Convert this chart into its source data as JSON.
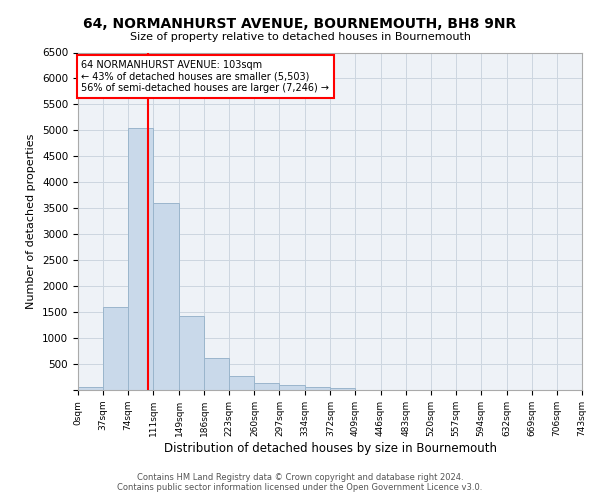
{
  "title": "64, NORMANHURST AVENUE, BOURNEMOUTH, BH8 9NR",
  "subtitle": "Size of property relative to detached houses in Bournemouth",
  "xlabel": "Distribution of detached houses by size in Bournemouth",
  "ylabel": "Number of detached properties",
  "footer_line1": "Contains HM Land Registry data © Crown copyright and database right 2024.",
  "footer_line2": "Contains public sector information licensed under the Open Government Licence v3.0.",
  "bar_color": "#c9d9ea",
  "bar_edge_color": "#9ab5cc",
  "grid_color": "#ccd6e0",
  "background_color": "#eef2f7",
  "annotation_text": "64 NORMANHURST AVENUE: 103sqm\n← 43% of detached houses are smaller (5,503)\n56% of semi-detached houses are larger (7,246) →",
  "vline_x": 103,
  "vline_color": "red",
  "bin_edges": [
    0,
    37,
    74,
    111,
    149,
    186,
    223,
    260,
    297,
    334,
    372,
    409,
    446,
    483,
    520,
    557,
    594,
    632,
    669,
    706,
    743
  ],
  "bin_labels": [
    "0sqm",
    "37sqm",
    "74sqm",
    "111sqm",
    "149sqm",
    "186sqm",
    "223sqm",
    "260sqm",
    "297sqm",
    "334sqm",
    "372sqm",
    "409sqm",
    "446sqm",
    "483sqm",
    "520sqm",
    "557sqm",
    "594sqm",
    "632sqm",
    "669sqm",
    "706sqm",
    "743sqm"
  ],
  "bar_heights": [
    55,
    1600,
    5050,
    3600,
    1430,
    610,
    270,
    130,
    95,
    65,
    30,
    0,
    0,
    0,
    0,
    0,
    0,
    0,
    0,
    0
  ],
  "ylim": [
    0,
    6500
  ],
  "yticks": [
    0,
    500,
    1000,
    1500,
    2000,
    2500,
    3000,
    3500,
    4000,
    4500,
    5000,
    5500,
    6000,
    6500
  ]
}
